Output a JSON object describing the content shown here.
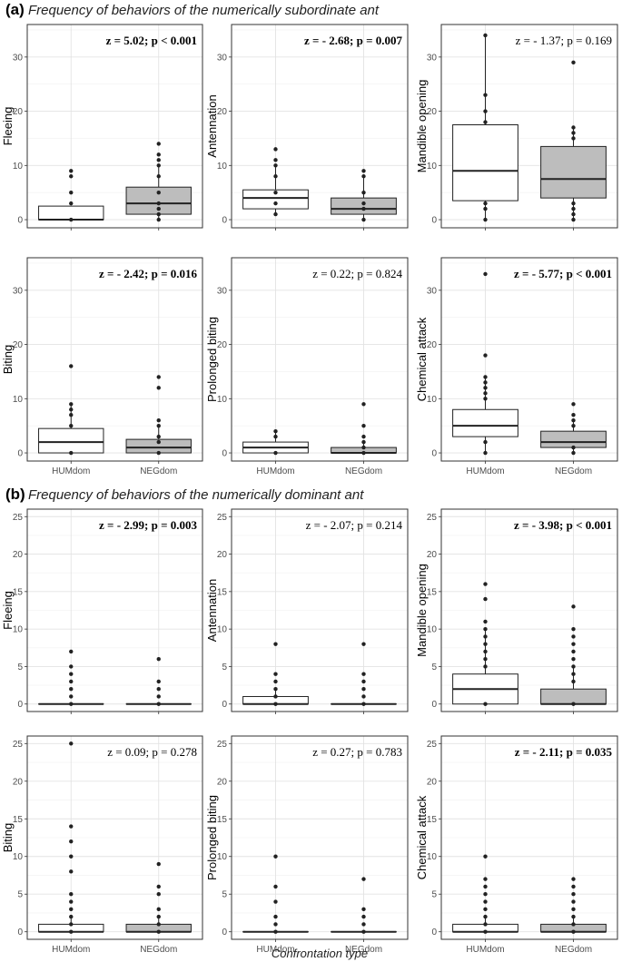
{
  "figure": {
    "x_axis_title": "Confrontation type",
    "group_colors": {
      "HUMdom": "#ffffff",
      "NEGdom": "#bdbdbd"
    }
  },
  "chart_data": [
    {
      "section": "(a)",
      "title": "Frequency of behaviors of the numerically subordinate ant",
      "type": "boxplot",
      "ylim": [
        -1.5,
        36
      ],
      "yticks": [
        0,
        10,
        20,
        30
      ],
      "categories": [
        "HUMdom",
        "NEGdom"
      ],
      "panels": [
        {
          "ylabel": "Fleeing",
          "stat": "z = 5.02; p < 0.001",
          "bold": true,
          "boxes": [
            {
              "q1": 0,
              "median": 0,
              "q3": 2.5,
              "wlo": 0,
              "whi": 2.5,
              "points": [
                0,
                3,
                5,
                8,
                9
              ]
            },
            {
              "q1": 1,
              "median": 3,
              "q3": 6,
              "wlo": 0,
              "whi": 10,
              "points": [
                0,
                1,
                2,
                3,
                5,
                8,
                10,
                11,
                12,
                14
              ]
            }
          ]
        },
        {
          "ylabel": "Antennation",
          "stat": "z = - 2.68; p = 0.007",
          "bold": true,
          "boxes": [
            {
              "q1": 2,
              "median": 4,
              "q3": 5.5,
              "wlo": 1,
              "whi": 10,
              "points": [
                1,
                3,
                5,
                8,
                10,
                11,
                13
              ]
            },
            {
              "q1": 1,
              "median": 2,
              "q3": 4,
              "wlo": 0,
              "whi": 8,
              "points": [
                0,
                2,
                3,
                5,
                8,
                9
              ]
            }
          ]
        },
        {
          "ylabel": "Mandible opening",
          "stat": "z = - 1.37; p = 0.169",
          "bold": false,
          "boxes": [
            {
              "q1": 3.5,
              "median": 9,
              "q3": 17.5,
              "wlo": 0,
              "whi": 34,
              "points": [
                0,
                2,
                3,
                18,
                20,
                23,
                34
              ]
            },
            {
              "q1": 4,
              "median": 7.5,
              "q3": 13.5,
              "wlo": 0,
              "whi": 17,
              "points": [
                0,
                1,
                2,
                3,
                15,
                16,
                17,
                29
              ]
            }
          ]
        },
        {
          "ylabel": "Biting",
          "stat": "z = - 2.42; p = 0.016",
          "bold": true,
          "boxes": [
            {
              "q1": 0,
              "median": 2,
              "q3": 4.5,
              "wlo": 0,
              "whi": 9,
              "points": [
                0,
                5,
                7,
                8,
                9,
                16
              ]
            },
            {
              "q1": 0,
              "median": 1,
              "q3": 2.5,
              "wlo": 0,
              "whi": 5,
              "points": [
                0,
                2,
                3,
                5,
                6,
                12,
                14
              ]
            }
          ]
        },
        {
          "ylabel": "Prolonged biting",
          "stat": "z = 0.22; p = 0.824",
          "bold": false,
          "boxes": [
            {
              "q1": 0,
              "median": 1,
              "q3": 2,
              "wlo": 0,
              "whi": 4,
              "points": [
                0,
                3,
                4
              ]
            },
            {
              "q1": 0,
              "median": 0,
              "q3": 1,
              "wlo": 0,
              "whi": 2,
              "points": [
                0,
                1,
                2,
                3,
                5,
                9
              ]
            }
          ]
        },
        {
          "ylabel": "Chemical attack",
          "stat": "z = - 5.77; p < 0.001",
          "bold": true,
          "boxes": [
            {
              "q1": 3,
              "median": 5,
              "q3": 8,
              "wlo": 0,
              "whi": 14,
              "points": [
                0,
                2,
                10,
                11,
                12,
                13,
                14,
                18,
                33
              ]
            },
            {
              "q1": 1,
              "median": 2,
              "q3": 4,
              "wlo": 0,
              "whi": 6,
              "points": [
                0,
                1,
                5,
                6,
                7,
                9
              ]
            }
          ]
        }
      ]
    },
    {
      "section": "(b)",
      "title": "Frequency of behaviors of the numerically dominant ant",
      "type": "boxplot",
      "ylim": [
        -1,
        26
      ],
      "yticks": [
        0,
        5,
        10,
        15,
        20,
        25
      ],
      "categories": [
        "HUMdom",
        "NEGdom"
      ],
      "panels": [
        {
          "ylabel": "Fleeing",
          "stat": "z = - 2.99; p = 0.003",
          "bold": true,
          "boxes": [
            {
              "q1": 0,
              "median": 0,
              "q3": 0,
              "wlo": 0,
              "whi": 0,
              "points": [
                0,
                1,
                2,
                3,
                4,
                5,
                7
              ]
            },
            {
              "q1": 0,
              "median": 0,
              "q3": 0,
              "wlo": 0,
              "whi": 0,
              "points": [
                0,
                1,
                2,
                3,
                6
              ]
            }
          ]
        },
        {
          "ylabel": "Antennation",
          "stat": "z = - 2.07; p = 0.214",
          "bold": false,
          "boxes": [
            {
              "q1": 0,
              "median": 0,
              "q3": 1,
              "wlo": 0,
              "whi": 2,
              "points": [
                0,
                1,
                2,
                3,
                4,
                8
              ]
            },
            {
              "q1": 0,
              "median": 0,
              "q3": 0,
              "wlo": 0,
              "whi": 0,
              "points": [
                0,
                1,
                2,
                3,
                4,
                8
              ]
            }
          ]
        },
        {
          "ylabel": "Mandible opening",
          "stat": "z = - 3.98; p < 0.001",
          "bold": true,
          "boxes": [
            {
              "q1": 0,
              "median": 2,
              "q3": 4,
              "wlo": 0,
              "whi": 10,
              "points": [
                0,
                5,
                6,
                7,
                8,
                9,
                10,
                11,
                14,
                16
              ]
            },
            {
              "q1": 0,
              "median": 0,
              "q3": 2,
              "wlo": 0,
              "whi": 5,
              "points": [
                0,
                3,
                4,
                5,
                6,
                7,
                8,
                9,
                10,
                13
              ]
            }
          ]
        },
        {
          "ylabel": "Biting",
          "stat": "z = 0.09; p = 0.278",
          "bold": false,
          "boxes": [
            {
              "q1": 0,
              "median": 0,
              "q3": 1,
              "wlo": 0,
              "whi": 2,
              "points": [
                0,
                1,
                2,
                3,
                4,
                5,
                8,
                10,
                12,
                14,
                25
              ]
            },
            {
              "q1": 0,
              "median": 0,
              "q3": 1,
              "wlo": 0,
              "whi": 2,
              "points": [
                0,
                1,
                2,
                3,
                5,
                6,
                9
              ]
            }
          ]
        },
        {
          "ylabel": "Prolonged biting",
          "stat": "z = 0.27; p = 0.783",
          "bold": false,
          "boxes": [
            {
              "q1": 0,
              "median": 0,
              "q3": 0,
              "wlo": 0,
              "whi": 0,
              "points": [
                0,
                1,
                2,
                4,
                6,
                10
              ]
            },
            {
              "q1": 0,
              "median": 0,
              "q3": 0,
              "wlo": 0,
              "whi": 0,
              "points": [
                0,
                1,
                2,
                3,
                7
              ]
            }
          ]
        },
        {
          "ylabel": "Chemical attack",
          "stat": "z = - 2.11; p = 0.035",
          "bold": true,
          "boxes": [
            {
              "q1": 0,
              "median": 0,
              "q3": 1,
              "wlo": 0,
              "whi": 2,
              "points": [
                0,
                1,
                2,
                3,
                4,
                5,
                6,
                7,
                10
              ]
            },
            {
              "q1": 0,
              "median": 0,
              "q3": 1,
              "wlo": 0,
              "whi": 2,
              "points": [
                0,
                1,
                2,
                3,
                4,
                5,
                6,
                7
              ]
            }
          ]
        }
      ]
    }
  ]
}
